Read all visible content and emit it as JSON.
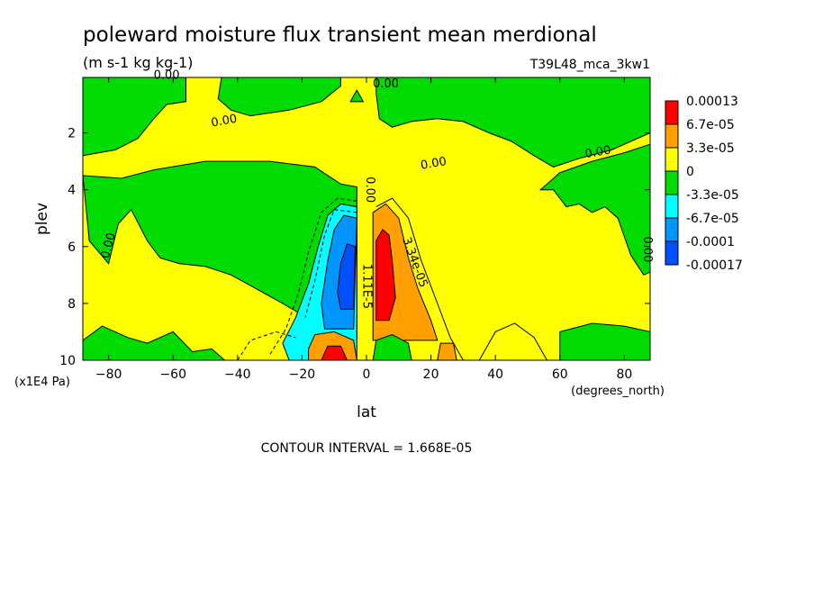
{
  "chart_data": {
    "type": "heatmap",
    "title": "poleward moisture flux transient mean merdional",
    "subtitle": "(m s-1 kg kg-1)",
    "run_label": "T39L48_mca_3kw1",
    "xlabel": "lat",
    "x_unit": "(degrees_north)",
    "ylabel": "plev",
    "y_unit": "(x1E4 Pa)",
    "xlim": [
      -88,
      88
    ],
    "ylim": [
      10,
      0.05
    ],
    "x_ticks": [
      -80,
      -60,
      -40,
      -20,
      0,
      20,
      40,
      60,
      80
    ],
    "y_ticks": [
      2,
      4,
      6,
      8,
      10
    ],
    "footer": "CONTOUR INTERVAL = 1.668E-05",
    "legend": {
      "placement": "right",
      "labels": [
        "0.00013",
        "6.7e-05",
        "3.3e-05",
        "0",
        "-3.3e-05",
        "-6.7e-05",
        "-0.0001",
        "-0.00017"
      ],
      "colors": [
        "#ff0000",
        "#ffa000",
        "#ffff00",
        "#00dc00",
        "#00ffff",
        "#0096ff",
        "#0050ff"
      ]
    },
    "contour_labels": [
      {
        "text": "0.00",
        "lat": -62,
        "plev": 0.1,
        "angle": 0
      },
      {
        "text": "0.00",
        "lat": 6,
        "plev": 0.4,
        "angle": 0
      },
      {
        "text": "0.00",
        "lat": -44,
        "plev": 1.7,
        "angle": -10
      },
      {
        "text": "0.00",
        "lat": 21,
        "plev": 3.2,
        "angle": -10
      },
      {
        "text": "0.00",
        "lat": 72,
        "plev": 2.8,
        "angle": -10
      },
      {
        "text": "0.00",
        "lat": -79,
        "plev": 6.0,
        "angle": -75
      },
      {
        "text": "0.00",
        "lat": 0,
        "plev": 4.0,
        "angle": 90
      },
      {
        "text": "0.00",
        "lat": 86,
        "plev": 6.1,
        "angle": 90
      },
      {
        "text": "3.34e-05",
        "lat": 14,
        "plev": 6.6,
        "angle": 70
      },
      {
        "text": "1.11E-5",
        "lat": -1,
        "plev": 7.4,
        "angle": 90
      }
    ]
  }
}
